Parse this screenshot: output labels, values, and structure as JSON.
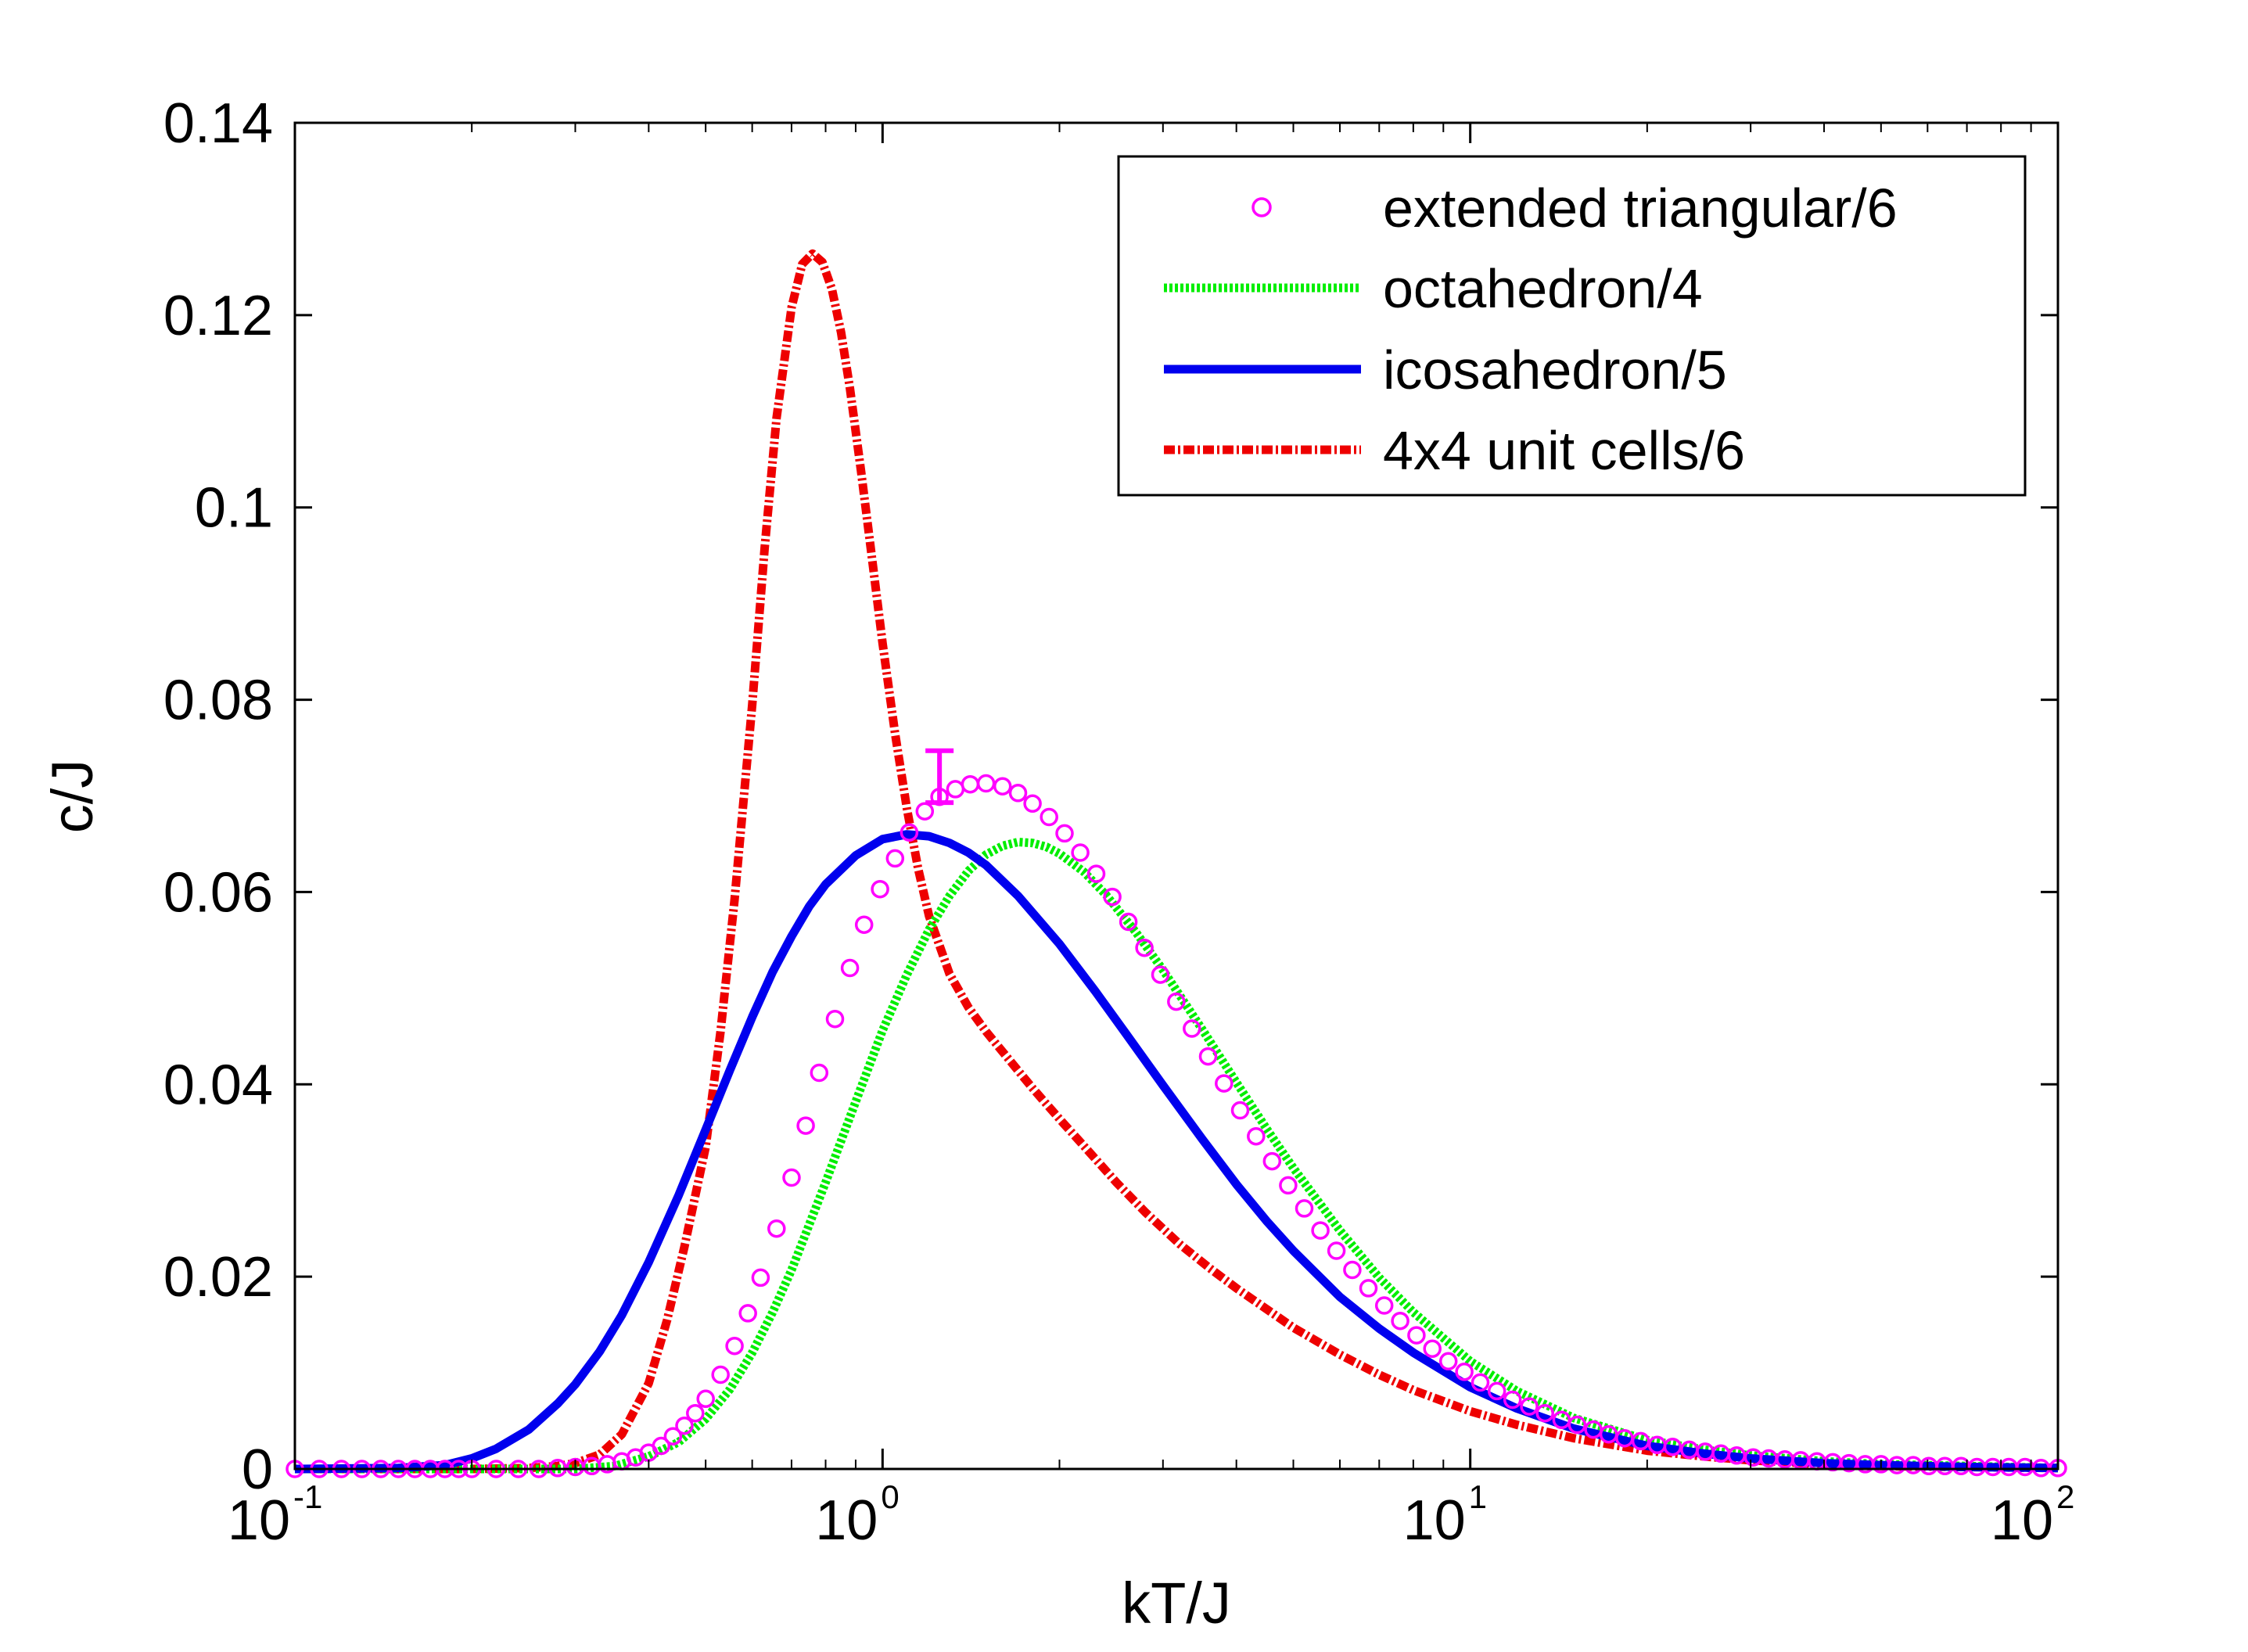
{
  "chart_data": {
    "type": "line",
    "title": "",
    "xlabel": "kT/J",
    "ylabel": "c/J",
    "xscale": "log",
    "xlim": [
      0.1,
      100
    ],
    "ylim": [
      0,
      0.14
    ],
    "x_ticks": [
      {
        "base": "10",
        "exp": "-1",
        "value": 0.1
      },
      {
        "base": "10",
        "exp": "0",
        "value": 1
      },
      {
        "base": "10",
        "exp": "1",
        "value": 10
      },
      {
        "base": "10",
        "exp": "2",
        "value": 100
      }
    ],
    "y_ticks": [
      {
        "label": "0",
        "value": 0
      },
      {
        "label": "0.02",
        "value": 0.02
      },
      {
        "label": "0.04",
        "value": 0.04
      },
      {
        "label": "0.06",
        "value": 0.06
      },
      {
        "label": "0.08",
        "value": 0.08
      },
      {
        "label": "0.1",
        "value": 0.1
      },
      {
        "label": "0.12",
        "value": 0.12
      },
      {
        "label": "0.14",
        "value": 0.14
      }
    ],
    "grid": false,
    "legend_position": "top-right",
    "series": [
      {
        "name": "extended triangular/6",
        "style": "markers-circle",
        "color": "#ff00ff",
        "x": [
          0.1,
          0.11,
          0.12,
          0.13,
          0.14,
          0.15,
          0.16,
          0.17,
          0.18,
          0.19,
          0.2,
          0.22,
          0.24,
          0.26,
          0.28,
          0.3,
          0.32,
          0.34,
          0.36,
          0.38,
          0.4,
          0.42,
          0.44,
          0.46,
          0.48,
          0.5,
          0.53,
          0.56,
          0.59,
          0.62,
          0.66,
          0.7,
          0.74,
          0.78,
          0.83,
          0.88,
          0.93,
          0.99,
          1.05,
          1.11,
          1.18,
          1.25,
          1.33,
          1.41,
          1.5,
          1.6,
          1.7,
          1.8,
          1.92,
          2.04,
          2.17,
          2.31,
          2.46,
          2.62,
          2.79,
          2.97,
          3.16,
          3.36,
          3.58,
          3.81,
          4.06,
          4.32,
          4.6,
          4.9,
          5.22,
          5.56,
          5.92,
          6.3,
          6.71,
          7.14,
          7.6,
          8.1,
          8.62,
          9.18,
          9.77,
          10.4,
          11.1,
          11.8,
          12.6,
          13.4,
          14.3,
          15.2,
          16.2,
          17.2,
          18.3,
          19.5,
          20.8,
          22.1,
          23.6,
          25.1,
          26.7,
          28.4,
          30.3,
          32.2,
          34.3,
          36.5,
          38.9,
          41.4,
          44.1,
          47.0,
          50.0,
          53.2,
          56.7,
          60.3,
          64.2,
          68.4,
          72.8,
          77.5,
          82.5,
          87.9,
          93.6,
          100
        ],
        "y": [
          0.0,
          0.0,
          0.0,
          0.0,
          0.0,
          0.0,
          0.0,
          0.0,
          0.0,
          0.0,
          0.0,
          0.0,
          0.0,
          0.0,
          0.0001,
          0.0002,
          0.0003,
          0.0005,
          0.0008,
          0.0012,
          0.0017,
          0.0024,
          0.0034,
          0.0045,
          0.0058,
          0.0073,
          0.0098,
          0.0128,
          0.0162,
          0.0199,
          0.025,
          0.0303,
          0.0357,
          0.0412,
          0.0468,
          0.0521,
          0.0566,
          0.0603,
          0.0635,
          0.0662,
          0.0684,
          0.0699,
          0.0707,
          0.0712,
          0.0713,
          0.071,
          0.0703,
          0.0692,
          0.0678,
          0.0661,
          0.0641,
          0.0619,
          0.0595,
          0.0569,
          0.0542,
          0.0514,
          0.0486,
          0.0458,
          0.0429,
          0.0401,
          0.0373,
          0.0346,
          0.032,
          0.0295,
          0.0271,
          0.0248,
          0.0227,
          0.0207,
          0.0188,
          0.017,
          0.0154,
          0.0139,
          0.0125,
          0.0112,
          0.0101,
          0.009,
          0.0081,
          0.0072,
          0.0065,
          0.0058,
          0.0051,
          0.0046,
          0.0041,
          0.0036,
          0.0032,
          0.0029,
          0.0025,
          0.0023,
          0.002,
          0.0018,
          0.0016,
          0.0014,
          0.0012,
          0.0011,
          0.001,
          0.0009,
          0.0008,
          0.0007,
          0.0006,
          0.0005,
          0.0005,
          0.0004,
          0.0004,
          0.0003,
          0.0003,
          0.0003,
          0.0002,
          0.0002,
          0.0002,
          0.0002,
          0.0001,
          0.0001
        ],
        "error_bar": {
          "x": 1.25,
          "y": 0.0721,
          "ymin": 0.0693,
          "ymax": 0.0747
        }
      },
      {
        "name": "octahedron/4",
        "style": "dotted",
        "color": "#00ee00",
        "x": [
          0.1,
          0.2,
          0.3,
          0.35,
          0.4,
          0.45,
          0.5,
          0.55,
          0.6,
          0.65,
          0.7,
          0.75,
          0.8,
          0.9,
          1.0,
          1.1,
          1.2,
          1.3,
          1.4,
          1.5,
          1.6,
          1.7,
          1.8,
          1.9,
          2.0,
          2.2,
          2.4,
          2.7,
          3.0,
          3.5,
          4.0,
          4.5,
          5.0,
          6.0,
          7.0,
          8.0,
          10,
          12,
          15,
          20,
          25,
          30,
          40,
          50,
          70,
          100
        ],
        "y": [
          0.0,
          0.0,
          0.0,
          0.0003,
          0.0013,
          0.0028,
          0.0052,
          0.0083,
          0.0121,
          0.0163,
          0.0207,
          0.0254,
          0.0298,
          0.0382,
          0.0456,
          0.0514,
          0.0561,
          0.0596,
          0.0622,
          0.0639,
          0.0648,
          0.0652,
          0.0651,
          0.0647,
          0.064,
          0.0621,
          0.0597,
          0.0558,
          0.0519,
          0.0457,
          0.0402,
          0.0354,
          0.0313,
          0.0248,
          0.0199,
          0.0163,
          0.0112,
          0.0081,
          0.0053,
          0.003,
          0.002,
          0.0014,
          0.0008,
          0.0005,
          0.0003,
          0.0001
        ]
      },
      {
        "name": "icosahedron/5",
        "style": "solid",
        "color": "#0000ee",
        "x": [
          0.1,
          0.15,
          0.18,
          0.2,
          0.22,
          0.25,
          0.28,
          0.3,
          0.33,
          0.36,
          0.4,
          0.45,
          0.5,
          0.55,
          0.6,
          0.65,
          0.7,
          0.75,
          0.8,
          0.9,
          1.0,
          1.1,
          1.2,
          1.3,
          1.4,
          1.5,
          1.7,
          2.0,
          2.3,
          2.6,
          3.0,
          3.5,
          4.0,
          4.5,
          5.0,
          6.0,
          7.0,
          8.0,
          10,
          12,
          15,
          20,
          25,
          30,
          40,
          50,
          70,
          100
        ],
        "y": [
          0.0,
          0.0001,
          0.0004,
          0.0011,
          0.0021,
          0.0041,
          0.0068,
          0.0088,
          0.0122,
          0.016,
          0.0215,
          0.0285,
          0.0353,
          0.0415,
          0.047,
          0.0517,
          0.0554,
          0.0585,
          0.0608,
          0.0638,
          0.0655,
          0.066,
          0.0658,
          0.0651,
          0.0641,
          0.0628,
          0.0596,
          0.0546,
          0.0497,
          0.0452,
          0.0399,
          0.0343,
          0.0296,
          0.0258,
          0.0227,
          0.0179,
          0.0146,
          0.0121,
          0.0085,
          0.0063,
          0.0042,
          0.0024,
          0.0016,
          0.0011,
          0.0006,
          0.0004,
          0.0002,
          0.0001
        ]
      },
      {
        "name": "4x4 unit cells/6",
        "style": "dash-dot",
        "color": "#ee0000",
        "x": [
          0.1,
          0.2,
          0.25,
          0.28,
          0.3,
          0.33,
          0.36,
          0.4,
          0.43,
          0.46,
          0.5,
          0.53,
          0.56,
          0.6,
          0.63,
          0.66,
          0.7,
          0.73,
          0.76,
          0.79,
          0.82,
          0.85,
          0.88,
          0.92,
          0.96,
          1.0,
          1.05,
          1.1,
          1.15,
          1.2,
          1.3,
          1.4,
          1.5,
          1.6,
          1.8,
          2.0,
          2.2,
          2.5,
          2.8,
          3.2,
          3.6,
          4.0,
          5.0,
          6.0,
          7.0,
          8.0,
          10,
          12,
          15,
          20,
          25,
          30,
          40,
          50,
          70,
          100
        ],
        "y": [
          0.0,
          0.0,
          0.0001,
          0.0003,
          0.0006,
          0.0015,
          0.0036,
          0.0089,
          0.0155,
          0.0231,
          0.0335,
          0.0455,
          0.0592,
          0.0795,
          0.0958,
          0.1093,
          0.1208,
          0.1253,
          0.1264,
          0.1255,
          0.1227,
          0.1182,
          0.1124,
          0.1036,
          0.0946,
          0.0859,
          0.0765,
          0.0687,
          0.0624,
          0.0575,
          0.0515,
          0.048,
          0.0455,
          0.0434,
          0.0396,
          0.0364,
          0.0336,
          0.0298,
          0.0267,
          0.0234,
          0.0209,
          0.0188,
          0.0147,
          0.0119,
          0.0098,
          0.0082,
          0.006,
          0.0046,
          0.0032,
          0.0019,
          0.0013,
          0.0009,
          0.0005,
          0.0003,
          0.0002,
          0.0001
        ]
      }
    ]
  }
}
